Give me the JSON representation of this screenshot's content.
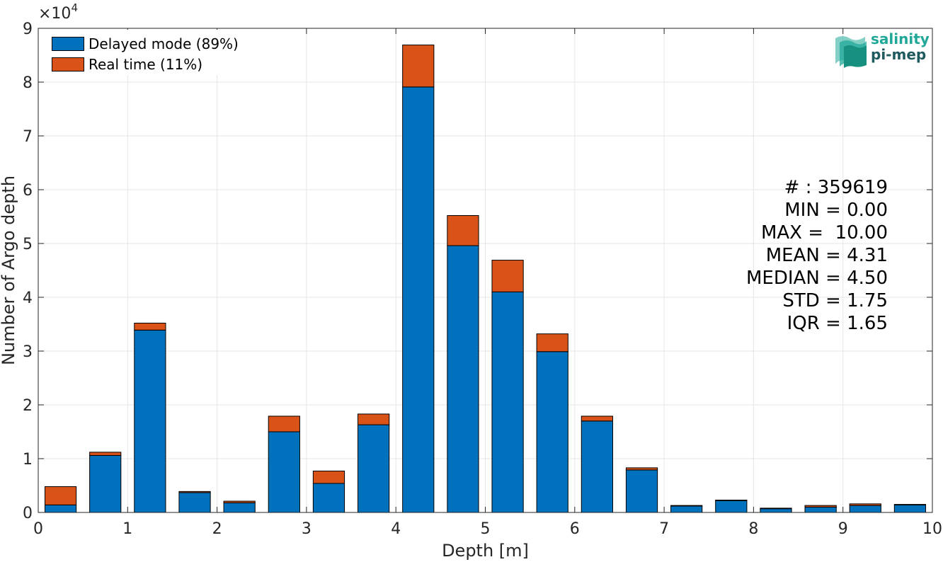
{
  "chart_data": {
    "type": "bar",
    "stacked": true,
    "x_centers": [
      0.25,
      0.75,
      1.25,
      1.75,
      2.25,
      2.75,
      3.25,
      3.75,
      4.25,
      4.75,
      5.25,
      5.75,
      6.25,
      6.75,
      7.25,
      7.75,
      8.25,
      8.75,
      9.25,
      9.75
    ],
    "series": [
      {
        "name": "Delayed mode (89%)",
        "color": "#0072bd",
        "values": [
          1400,
          10600,
          33900,
          3700,
          1800,
          15000,
          5400,
          16300,
          79100,
          49600,
          41000,
          29900,
          17000,
          7900,
          1200,
          2200,
          700,
          1000,
          1300,
          1400
        ]
      },
      {
        "name": "Real time (11%)",
        "color": "#d95319",
        "values": [
          3400,
          600,
          1300,
          200,
          300,
          2900,
          2300,
          2000,
          7800,
          5600,
          5900,
          3300,
          900,
          400,
          100,
          100,
          100,
          300,
          300,
          100
        ]
      }
    ],
    "xlabel": "Depth [m]",
    "ylabel": "Number of Argo depth",
    "y_multiplier": "×10",
    "y_multiplier_exp": "4",
    "xlim": [
      0,
      10
    ],
    "ylim": [
      0,
      90000
    ],
    "x_ticks": [
      "0",
      "1",
      "2",
      "3",
      "4",
      "5",
      "6",
      "7",
      "8",
      "9",
      "10"
    ],
    "y_ticks": [
      "0",
      "1",
      "2",
      "3",
      "4",
      "5",
      "6",
      "7",
      "8",
      "9"
    ],
    "grid": true,
    "legend_position": "top-left",
    "stats": [
      "# : 359619",
      "MIN = 0.00",
      "MAX =  10.00",
      "MEAN = 4.31",
      "MEDIAN = 4.50",
      "STD = 1.75",
      "IQR = 1.65"
    ]
  },
  "logo": {
    "line1": "salinity",
    "line2": "pi-mep",
    "icon": "salinity-wave-logo"
  }
}
